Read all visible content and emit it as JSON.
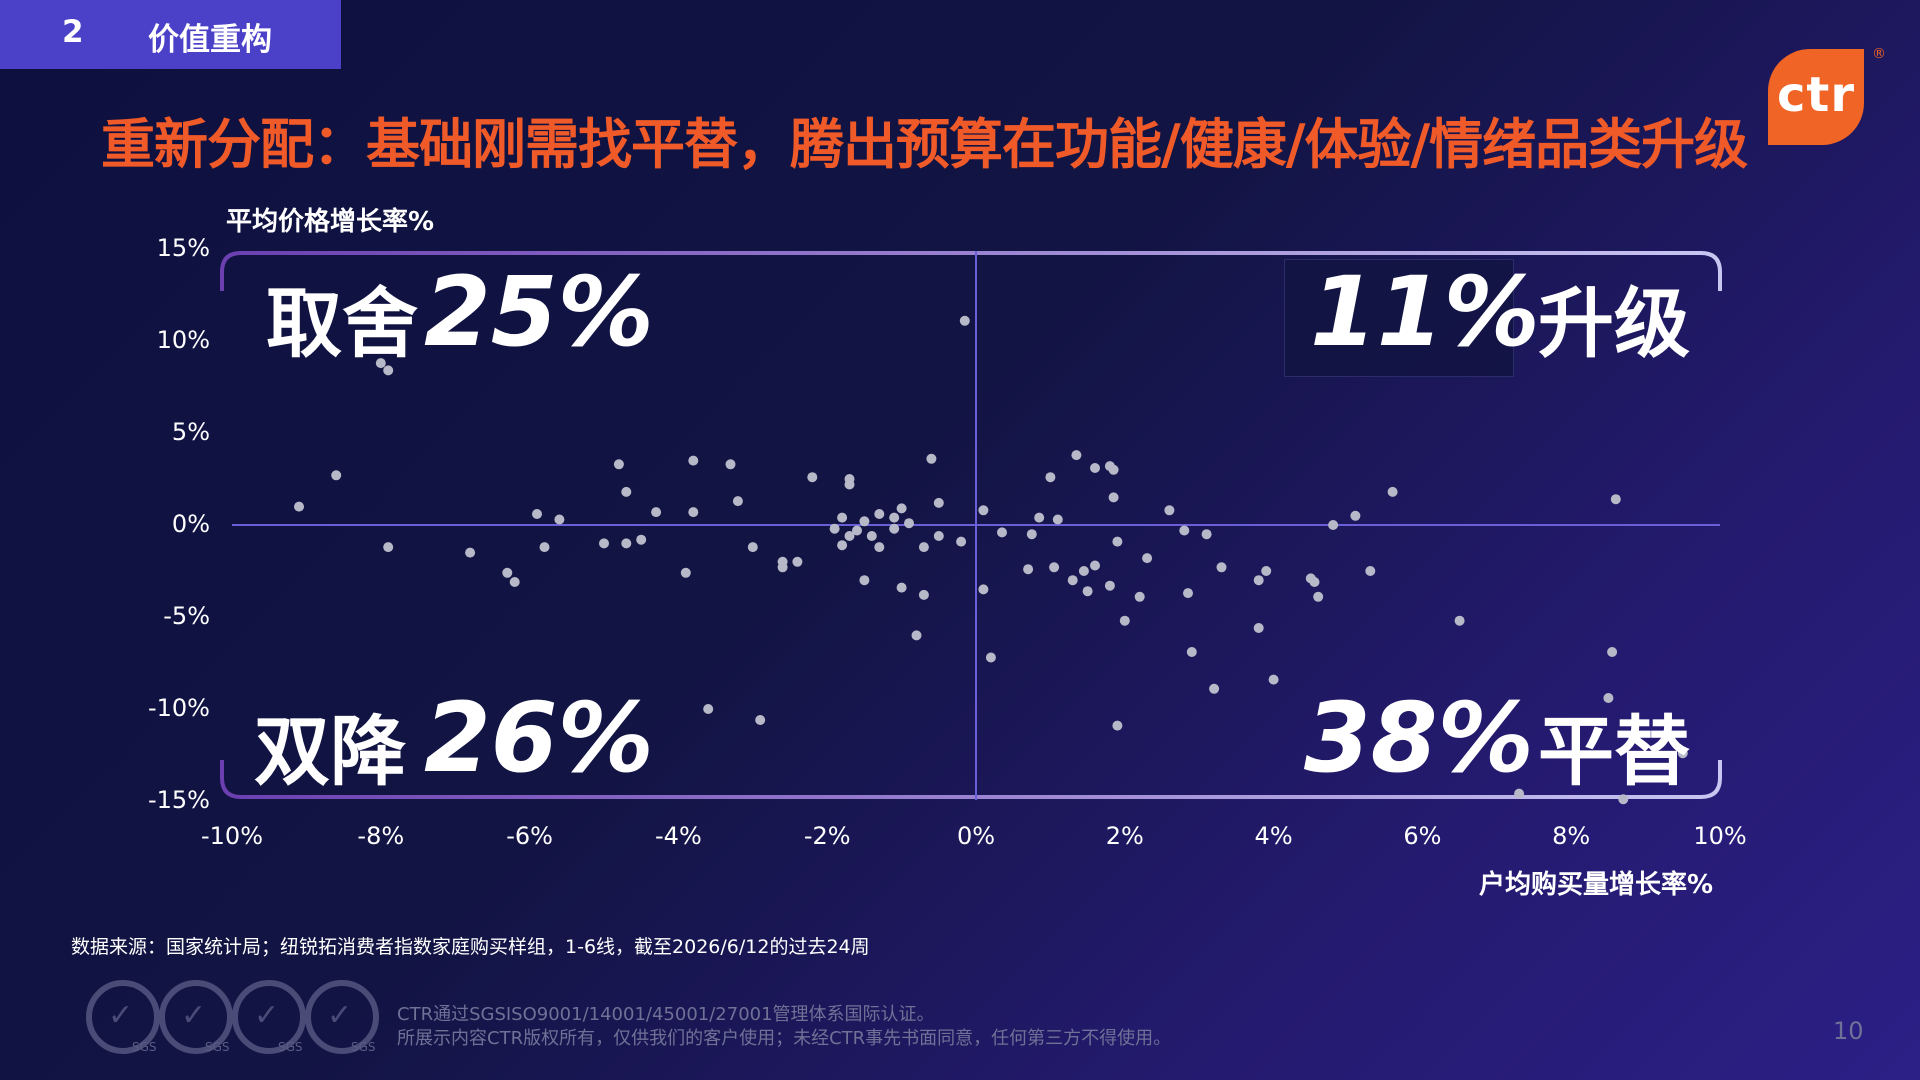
{
  "header": {
    "section_number": "2",
    "section_label": "价值重构"
  },
  "title": "重新分配：基础刚需找平替，腾出预算在功能/健康/体验/情绪品类升级",
  "logo": {
    "text": "ctr",
    "reg": "®"
  },
  "colors": {
    "accent": "#f05a28",
    "tab": "#4b41c9",
    "points": "#b8b9c8",
    "axis": "#6b5fd8"
  },
  "quadrants": {
    "top_left": {
      "label": "取舍",
      "pct": "25%"
    },
    "top_right": {
      "label": "升级",
      "pct": "11%"
    },
    "bottom_left": {
      "label": "双降",
      "pct": "26%"
    },
    "bottom_right": {
      "label": "平替",
      "pct": "38%"
    }
  },
  "chart_data": {
    "type": "scatter",
    "xlabel": "户均购买量增长率%",
    "ylabel": "平均价格增长率%",
    "xlim": [
      -10,
      10
    ],
    "ylim": [
      -15,
      15
    ],
    "x_ticks": [
      "-10%",
      "-8%",
      "-6%",
      "-4%",
      "-2%",
      "0%",
      "2%",
      "4%",
      "6%",
      "8%",
      "10%"
    ],
    "y_ticks": [
      "15%",
      "10%",
      "5%",
      "0%",
      "-5%",
      "-10%",
      "-15%"
    ],
    "points": [
      [
        -9.1,
        1.0
      ],
      [
        -8.6,
        2.7
      ],
      [
        -8.0,
        8.8
      ],
      [
        -7.9,
        8.4
      ],
      [
        -7.9,
        -1.2
      ],
      [
        -6.8,
        -1.5
      ],
      [
        -6.3,
        -2.6
      ],
      [
        -6.2,
        -3.1
      ],
      [
        -5.9,
        0.6
      ],
      [
        -5.8,
        -1.2
      ],
      [
        -5.6,
        0.3
      ],
      [
        -5.0,
        -1.0
      ],
      [
        -4.8,
        3.3
      ],
      [
        -4.7,
        1.8
      ],
      [
        -4.7,
        -1.0
      ],
      [
        -4.5,
        -0.8
      ],
      [
        -4.3,
        0.7
      ],
      [
        -3.9,
        -2.6
      ],
      [
        -3.8,
        3.5
      ],
      [
        -3.8,
        0.7
      ],
      [
        -3.6,
        -10.0
      ],
      [
        -3.3,
        3.3
      ],
      [
        -3.2,
        1.3
      ],
      [
        -3.0,
        -1.2
      ],
      [
        -2.9,
        -10.6
      ],
      [
        -2.6,
        -2.3
      ],
      [
        -2.6,
        -2.0
      ],
      [
        -2.4,
        -2.0
      ],
      [
        -2.2,
        2.6
      ],
      [
        -1.9,
        -0.2
      ],
      [
        -1.8,
        0.4
      ],
      [
        -1.8,
        -1.1
      ],
      [
        -1.7,
        2.2
      ],
      [
        -1.7,
        2.5
      ],
      [
        -1.7,
        -0.6
      ],
      [
        -1.6,
        -0.3
      ],
      [
        -1.5,
        0.2
      ],
      [
        -1.5,
        -3.0
      ],
      [
        -1.4,
        -0.6
      ],
      [
        -1.3,
        -1.2
      ],
      [
        -1.3,
        0.6
      ],
      [
        -1.1,
        -0.2
      ],
      [
        -1.1,
        0.4
      ],
      [
        -1.0,
        0.9
      ],
      [
        -1.0,
        -3.4
      ],
      [
        -0.9,
        0.1
      ],
      [
        -0.8,
        -6.0
      ],
      [
        -0.7,
        -3.8
      ],
      [
        -0.7,
        -1.2
      ],
      [
        -0.6,
        3.6
      ],
      [
        -0.5,
        1.2
      ],
      [
        -0.5,
        -0.6
      ],
      [
        -0.2,
        -0.9
      ],
      [
        -0.15,
        11.1
      ],
      [
        0.1,
        0.8
      ],
      [
        0.1,
        -3.5
      ],
      [
        0.2,
        -7.2
      ],
      [
        0.35,
        -0.4
      ],
      [
        0.7,
        -2.4
      ],
      [
        0.75,
        -0.5
      ],
      [
        0.85,
        0.4
      ],
      [
        1.0,
        2.6
      ],
      [
        1.05,
        -2.3
      ],
      [
        1.1,
        0.3
      ],
      [
        1.3,
        -3.0
      ],
      [
        1.35,
        3.8
      ],
      [
        1.45,
        -2.5
      ],
      [
        1.5,
        -3.6
      ],
      [
        1.6,
        3.1
      ],
      [
        1.6,
        -2.2
      ],
      [
        1.8,
        -3.3
      ],
      [
        1.8,
        3.2
      ],
      [
        1.85,
        3.0
      ],
      [
        1.85,
        1.5
      ],
      [
        1.9,
        -0.9
      ],
      [
        1.9,
        -10.9
      ],
      [
        2.0,
        -5.2
      ],
      [
        2.2,
        -3.9
      ],
      [
        2.3,
        -1.8
      ],
      [
        2.6,
        0.8
      ],
      [
        2.8,
        -0.3
      ],
      [
        2.85,
        -3.7
      ],
      [
        2.9,
        -6.9
      ],
      [
        3.1,
        -0.5
      ],
      [
        3.2,
        -8.9
      ],
      [
        3.3,
        -2.3
      ],
      [
        3.8,
        -3.0
      ],
      [
        3.8,
        -5.6
      ],
      [
        3.9,
        -2.5
      ],
      [
        4.0,
        -8.4
      ],
      [
        4.5,
        -2.9
      ],
      [
        4.55,
        -3.1
      ],
      [
        4.6,
        -3.9
      ],
      [
        4.8,
        0.0
      ],
      [
        5.1,
        0.5
      ],
      [
        5.3,
        -2.5
      ],
      [
        5.6,
        1.8
      ],
      [
        6.5,
        -5.2
      ],
      [
        7.3,
        -14.6
      ],
      [
        8.5,
        -9.4
      ],
      [
        8.55,
        -6.9
      ],
      [
        8.6,
        1.4
      ],
      [
        8.7,
        -14.9
      ],
      [
        9.5,
        -12.4
      ]
    ]
  },
  "source": "数据来源：国家统计局；纽锐拓消费者指数家庭购买样组，1-6线，截至2026/6/12的过去24周",
  "certs": [
    "SGS",
    "SGS",
    "SGS",
    "SGS"
  ],
  "legal": {
    "line1": "CTR通过SGSISO9001/14001/45001/27001管理体系国际认证。",
    "line2": "所展示内容CTR版权所有，仅供我们的客户使用；未经CTR事先书面同意，任何第三方不得使用。"
  },
  "page_number": "10"
}
